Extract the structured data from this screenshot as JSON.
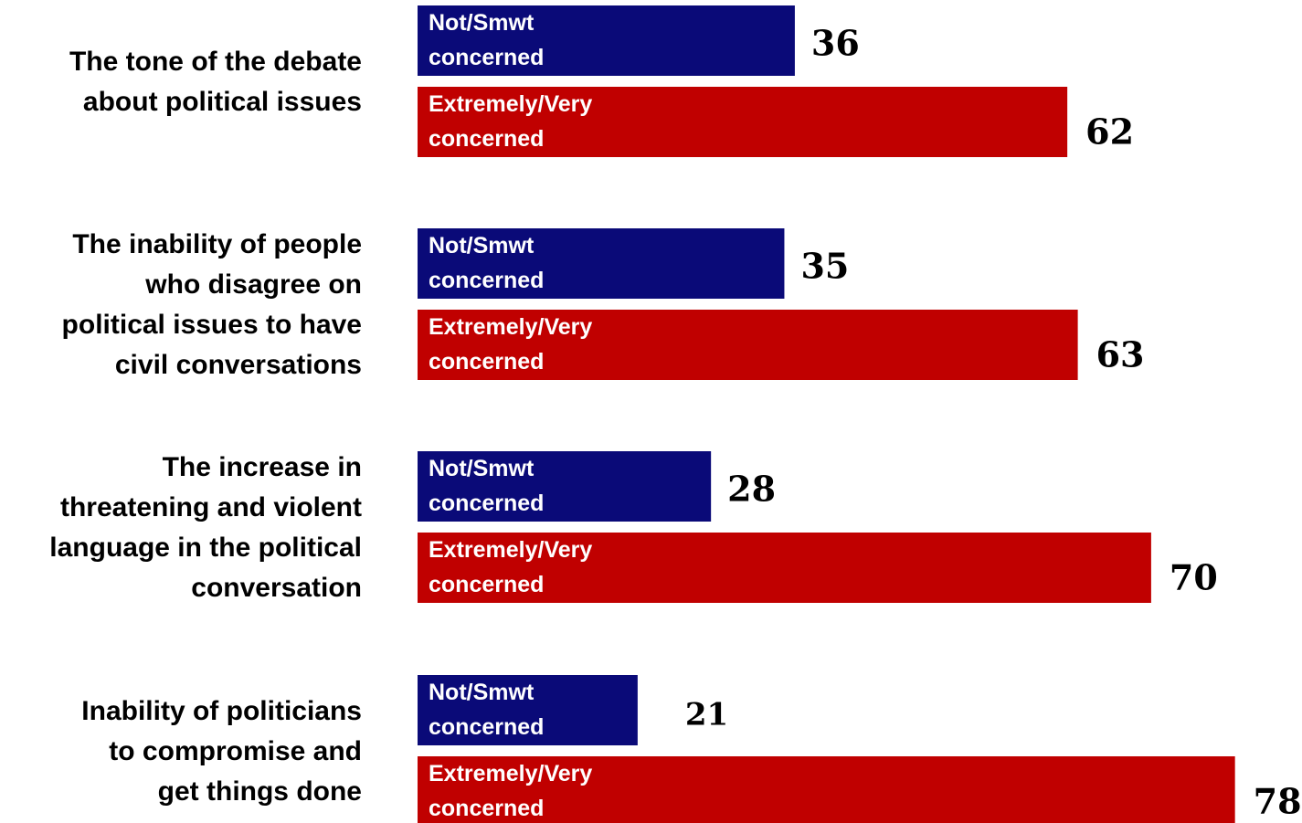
{
  "chart_data": {
    "type": "bar",
    "orientation": "horizontal",
    "categories": [
      "The tone of the debate about political issues",
      "The inability of people who disagree on political issues to have civil conversations",
      "The increase in threatening and violent language in the political conversation",
      "Inability of politicians to compromise and get things done"
    ],
    "series": [
      {
        "name": "Not/Smwt concerned",
        "values": [
          36,
          35,
          28,
          21
        ],
        "color": "#0a0a78"
      },
      {
        "name": "Extremely/Very concerned",
        "values": [
          62,
          63,
          70,
          78
        ],
        "color": "#c00000"
      }
    ],
    "data_labels": {
      "not": [
        "36",
        "35",
        "28",
        "21"
      ],
      "extremely": [
        "62",
        "63",
        "70",
        "78"
      ]
    },
    "xlim": [
      0,
      78
    ],
    "grid": false,
    "legend": "none"
  }
}
